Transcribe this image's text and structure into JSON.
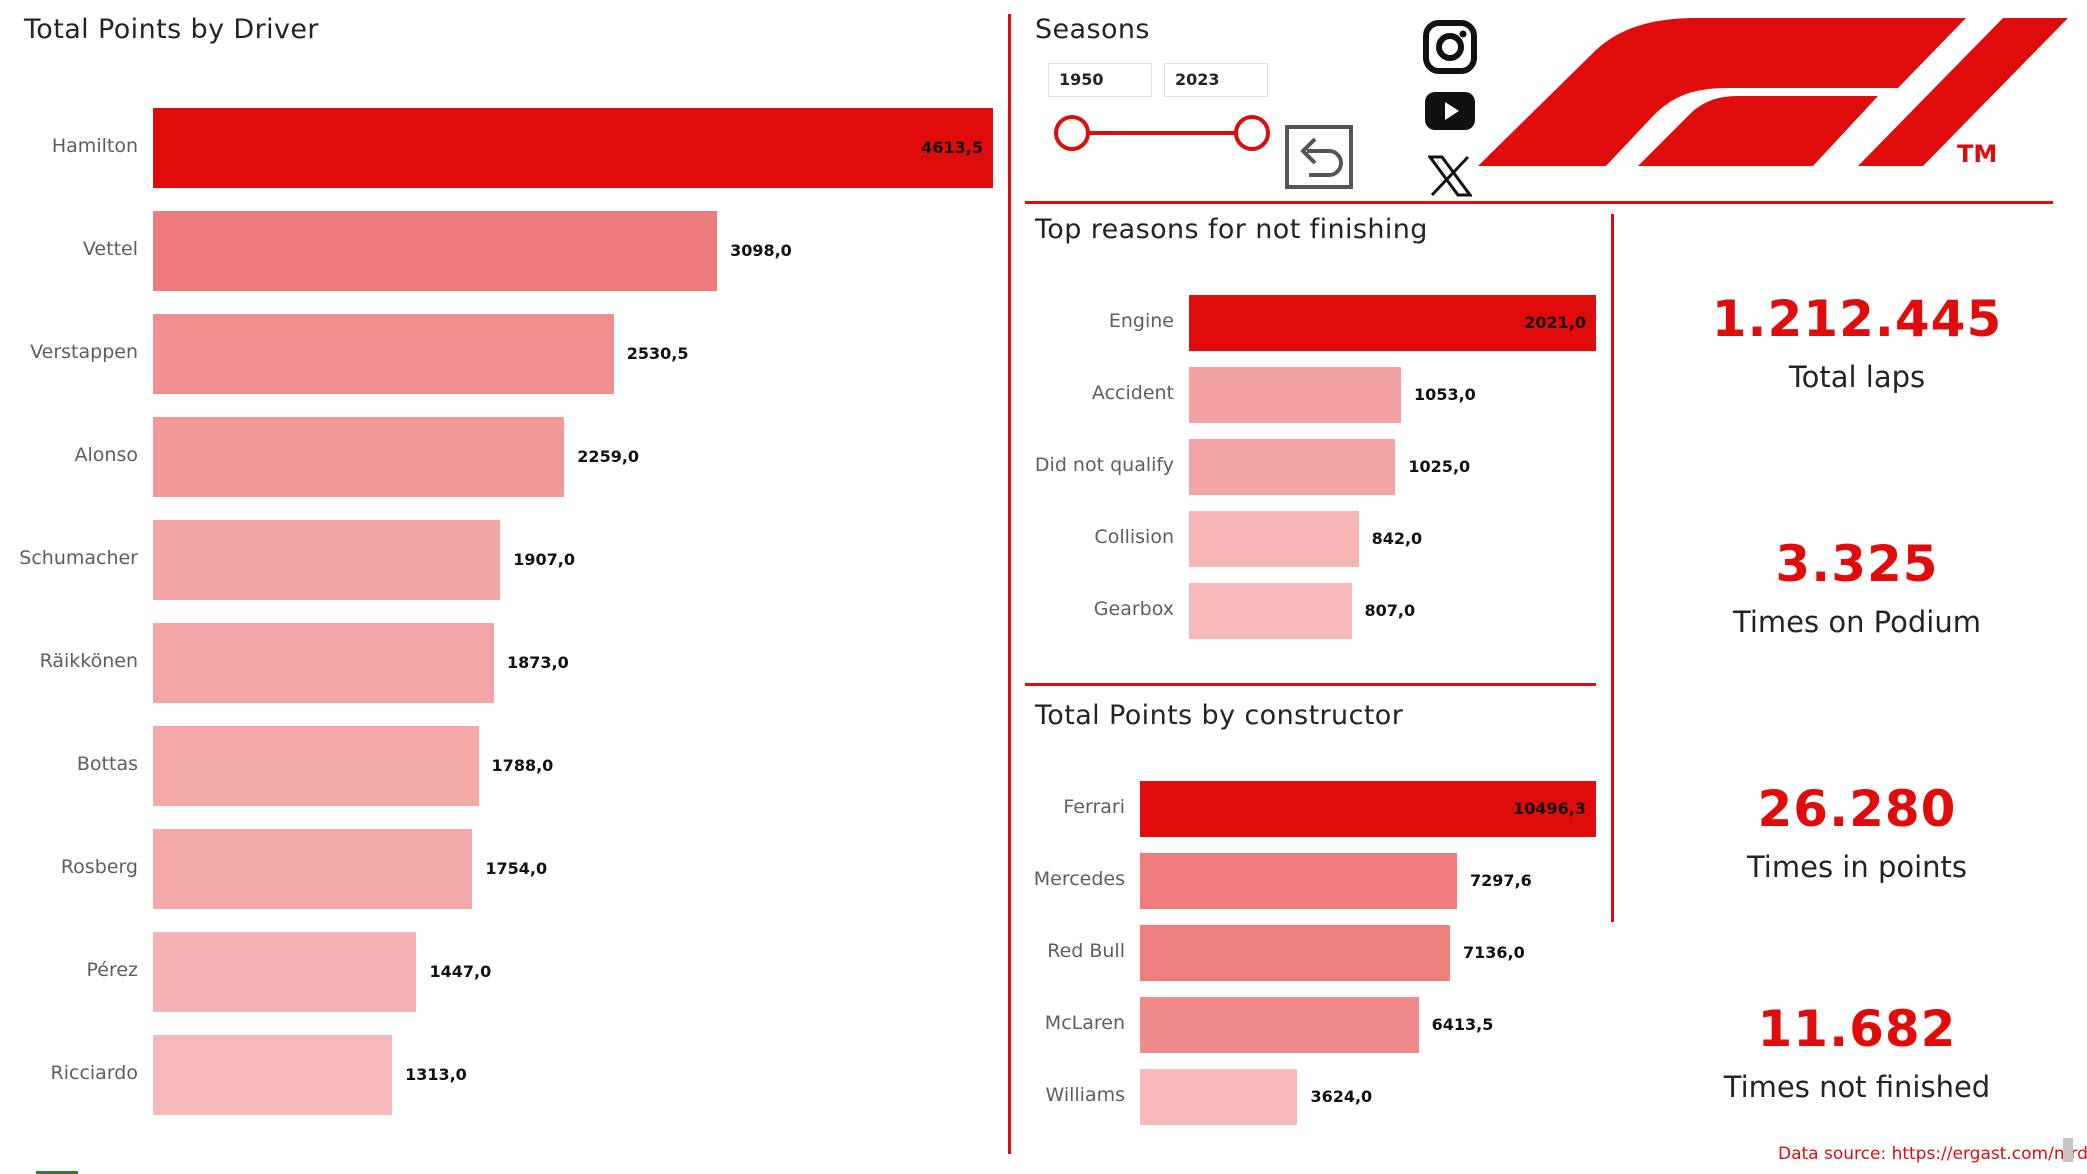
{
  "drivers": {
    "title": "Total Points by Driver",
    "chart_data": {
      "type": "bar",
      "orientation": "horizontal",
      "title": "Total Points by Driver",
      "categories": [
        "Hamilton",
        "Vettel",
        "Verstappen",
        "Alonso",
        "Schumacher",
        "Räikkönen",
        "Bottas",
        "Rosberg",
        "Pérez",
        "Ricciardo"
      ],
      "values": [
        4613.5,
        3098.0,
        2530.5,
        2259.0,
        1907.0,
        1873.0,
        1788.0,
        1754.0,
        1447.0,
        1313.0
      ],
      "labels": [
        "4613,5",
        "3098,0",
        "2530,5",
        "2259,0",
        "1907,0",
        "1873,0",
        "1788,0",
        "1754,0",
        "1447,0",
        "1313,0"
      ],
      "xlim": [
        0,
        4613.5
      ]
    }
  },
  "seasons": {
    "title": "Seasons",
    "start": "1950",
    "end": "2023",
    "range": [
      1950,
      2023
    ],
    "selected": [
      1950,
      2023
    ]
  },
  "reasons": {
    "title": "Top reasons for not finishing",
    "chart_data": {
      "type": "bar",
      "orientation": "horizontal",
      "title": "Top reasons for not finishing",
      "categories": [
        "Engine",
        "Accident",
        "Did not qualify",
        "Collision",
        "Gearbox"
      ],
      "values": [
        2021.0,
        1053.0,
        1025.0,
        842.0,
        807.0
      ],
      "labels": [
        "2021,0",
        "1053,0",
        "1025,0",
        "842,0",
        "807,0"
      ],
      "xlim": [
        0,
        2021.0
      ]
    }
  },
  "constructors": {
    "title": "Total Points by constructor",
    "chart_data": {
      "type": "bar",
      "orientation": "horizontal",
      "title": "Total Points by constructor",
      "categories": [
        "Ferrari",
        "Mercedes",
        "Red Bull",
        "McLaren",
        "Williams"
      ],
      "values": [
        10496.3,
        7297.6,
        7136.0,
        6413.5,
        3624.0
      ],
      "labels": [
        "10496,3",
        "7297,6",
        "7136,0",
        "6413,5",
        "3624,0"
      ],
      "xlim": [
        0,
        10496.3
      ]
    }
  },
  "kpis": [
    {
      "value": "1.212.445",
      "label": "Total laps"
    },
    {
      "value": "3.325",
      "label": "Times on Podium"
    },
    {
      "value": "26.280",
      "label": "Times in points"
    },
    {
      "value": "11.682",
      "label": "Times not finished"
    }
  ],
  "logo": {
    "tm": "TM"
  },
  "source": {
    "text": "Data source: https://ergast.com/mrd/"
  },
  "icons": {
    "social": [
      "instagram-icon",
      "youtube-icon",
      "x-icon"
    ],
    "reset": "reset-arrow-icon"
  },
  "colors": {
    "accent": "#e00b0b",
    "bar_min": "#f6b8b8"
  }
}
